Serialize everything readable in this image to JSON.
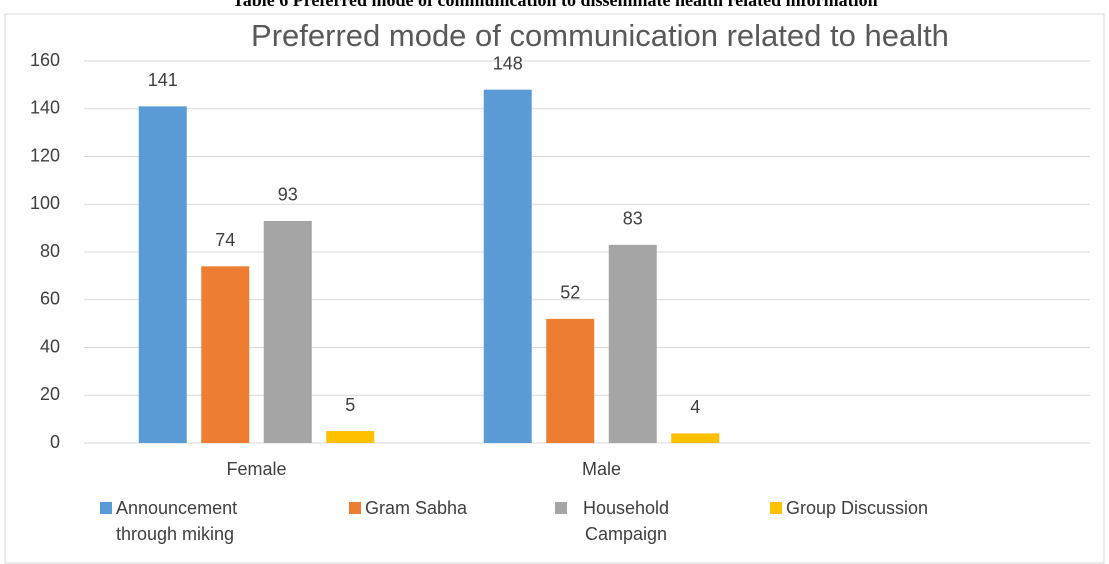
{
  "caption": "Table 6 Preferred mode of communication to disseminate health related information",
  "chart_data": {
    "type": "bar",
    "title": "Preferred mode of communication related to health",
    "categories": [
      "Female",
      "Male"
    ],
    "series": [
      {
        "name": "Announcement through miking",
        "color": "#5b9bd5",
        "values": [
          141,
          148
        ]
      },
      {
        "name": "Gram Sabha",
        "color": "#ed7d31",
        "values": [
          74,
          52
        ]
      },
      {
        "name": "Household Campaign",
        "color": "#a5a5a5",
        "values": [
          93,
          83
        ]
      },
      {
        "name": "Group Discussion",
        "color": "#ffc000",
        "values": [
          5,
          4
        ]
      }
    ],
    "ylim": [
      0,
      160
    ],
    "yticks": [
      0,
      20,
      40,
      60,
      80,
      100,
      120,
      140,
      160
    ],
    "grid": true,
    "legend": "bottom"
  }
}
